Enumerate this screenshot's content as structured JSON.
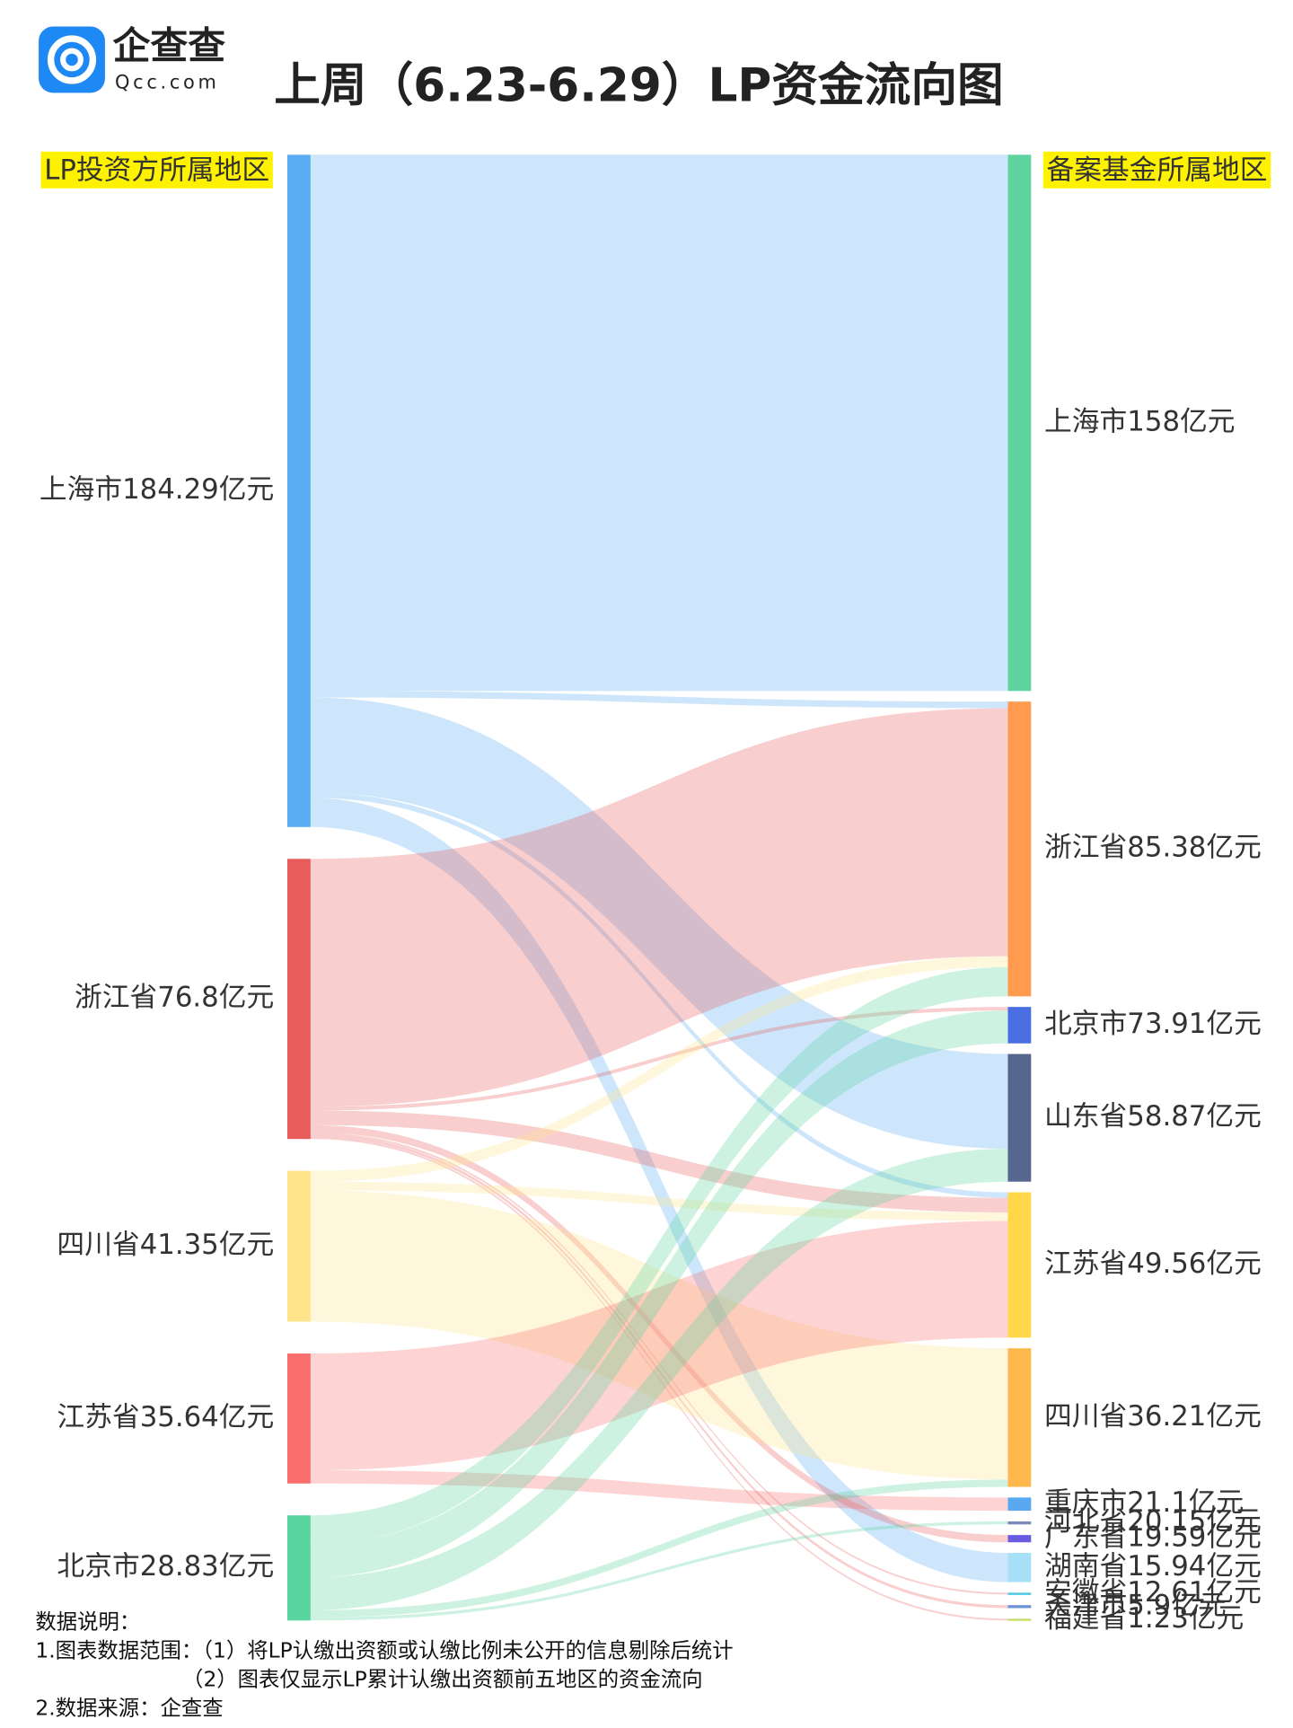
{
  "header": {
    "logo_name": "企查查",
    "logo_domain": "Qcc.com",
    "title": "上周（6.23-6.29）LP资金流向图"
  },
  "chart_data": {
    "type": "sankey",
    "left_heading": "LP投资方所属地区",
    "right_heading": "备案基金所属地区",
    "sources": [
      {
        "label": "上海市184.29亿元",
        "color": "#5aadf2"
      },
      {
        "label": "浙江省76.8亿元",
        "color": "#e85c5c"
      },
      {
        "label": "四川省41.35亿元",
        "color": "#ffe38a"
      },
      {
        "label": "江苏省35.64亿元",
        "color": "#fa6e6e"
      },
      {
        "label": "北京市28.83亿元",
        "color": "#5ad49e"
      }
    ],
    "targets": [
      {
        "label": "上海市158亿元",
        "color": "#5fd4a0"
      },
      {
        "label": "浙江省85.38亿元",
        "color": "#ff9a4e"
      },
      {
        "label": "北京市73.91亿元",
        "color": "#4a6fe3"
      },
      {
        "label": "山东省58.87亿元",
        "color": "#56668f"
      },
      {
        "label": "江苏省49.56亿元",
        "color": "#ffd84a"
      },
      {
        "label": "四川省36.21亿元",
        "color": "#ffb84d"
      },
      {
        "label": "重庆市21.1亿元",
        "color": "#5aa9f0"
      },
      {
        "label": "河北省20.15亿元",
        "color": "#7b8ab8"
      },
      {
        "label": "广东省19.59亿元",
        "color": "#6a5ce0"
      },
      {
        "label": "湖南省15.94亿元",
        "color": "#a8e0f8"
      },
      {
        "label": "安徽省12.61亿元",
        "color": "#4cc8e0"
      },
      {
        "label": "天津市5.9亿元",
        "color": "#6a90d8"
      },
      {
        "label": "福建省1.23亿元",
        "color": "#c8e06a"
      }
    ],
    "links": [
      {
        "source": 0,
        "target": 0,
        "value": 147
      },
      {
        "source": 0,
        "target": 1,
        "value": 1.79
      },
      {
        "source": 0,
        "target": 3,
        "value": 26
      },
      {
        "source": 0,
        "target": 4,
        "value": 1.5
      },
      {
        "source": 0,
        "target": 9,
        "value": 8
      },
      {
        "source": 1,
        "target": 1,
        "value": 68
      },
      {
        "source": 1,
        "target": 2,
        "value": 1
      },
      {
        "source": 1,
        "target": 4,
        "value": 4
      },
      {
        "source": 1,
        "target": 8,
        "value": 2
      },
      {
        "source": 1,
        "target": 10,
        "value": 0.5
      },
      {
        "source": 1,
        "target": 11,
        "value": 0.8
      },
      {
        "source": 1,
        "target": 12,
        "value": 0.5
      },
      {
        "source": 2,
        "target": 1,
        "value": 3
      },
      {
        "source": 2,
        "target": 4,
        "value": 2.35
      },
      {
        "source": 2,
        "target": 5,
        "value": 36
      },
      {
        "source": 3,
        "target": 4,
        "value": 32
      },
      {
        "source": 3,
        "target": 6,
        "value": 3.64
      },
      {
        "source": 4,
        "target": 1,
        "value": 8
      },
      {
        "source": 4,
        "target": 2,
        "value": 9
      },
      {
        "source": 4,
        "target": 3,
        "value": 9
      },
      {
        "source": 4,
        "target": 5,
        "value": 2
      },
      {
        "source": 4,
        "target": 7,
        "value": 0.83
      }
    ]
  },
  "notes": [
    "数据说明：",
    "1.图表数据范围：（1）将LP认缴出资额或认缴比例未公开的信息剔除后统计",
    "（2）图表仅显示LP累计认缴出资额前五地区的资金流向",
    "2.数据来源：企查查"
  ]
}
